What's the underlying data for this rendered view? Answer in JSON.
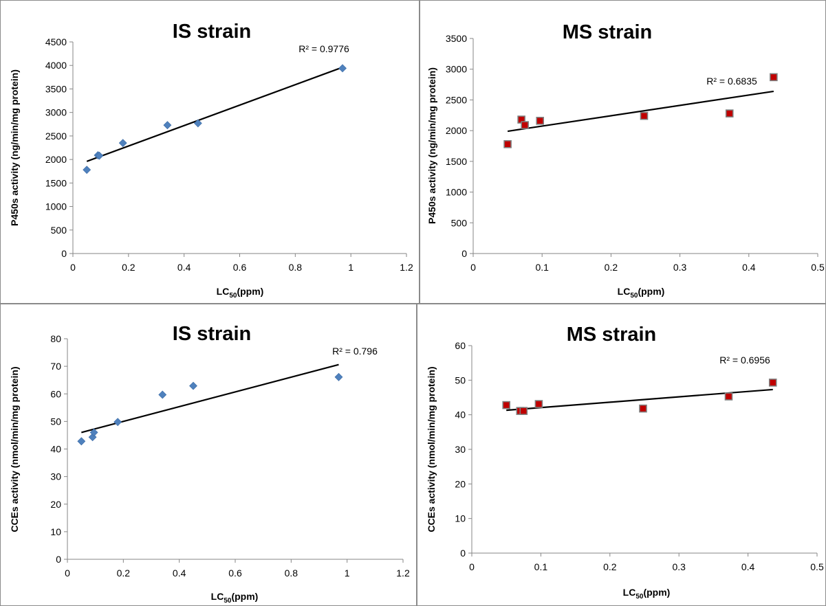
{
  "chart_data": [
    {
      "type": "scatter",
      "title": "IS strain",
      "xlabel": "LC",
      "xlabel_sub": "50",
      "xlabel_suffix": "(ppm)",
      "ylabel": "P450s activity (ng/min/mg protein)",
      "xlim": [
        0,
        1.2
      ],
      "ylim": [
        0,
        4500
      ],
      "xticks": [
        0,
        0.2,
        0.4,
        0.6,
        0.8,
        1,
        1.2
      ],
      "yticks": [
        0,
        500,
        1000,
        1500,
        2000,
        2500,
        3000,
        3500,
        4000,
        4500
      ],
      "grid": false,
      "legend": "none",
      "marker": "diamond",
      "marker_color": "#4f81bd",
      "points": [
        [
          0.05,
          1780
        ],
        [
          0.09,
          2090
        ],
        [
          0.095,
          2080
        ],
        [
          0.18,
          2350
        ],
        [
          0.34,
          2730
        ],
        [
          0.45,
          2770
        ],
        [
          0.97,
          3940
        ]
      ],
      "trendline": {
        "x": [
          0.05,
          0.97
        ],
        "y": [
          1960,
          3960
        ]
      },
      "r2_label": "R² = 0.9776"
    },
    {
      "type": "scatter",
      "title": "MS strain",
      "xlabel": "LC",
      "xlabel_sub": "50",
      "xlabel_suffix": "(ppm)",
      "ylabel": "P450s activity (ng/min/mg protein)",
      "xlim": [
        0,
        0.5
      ],
      "ylim": [
        0,
        3500
      ],
      "xticks": [
        0,
        0.1,
        0.2,
        0.3,
        0.4,
        0.5
      ],
      "yticks": [
        0,
        500,
        1000,
        1500,
        2000,
        2500,
        3000,
        3500
      ],
      "grid": false,
      "legend": "none",
      "marker": "square",
      "marker_color": "#c00000",
      "points": [
        [
          0.05,
          1780
        ],
        [
          0.07,
          2180
        ],
        [
          0.075,
          2090
        ],
        [
          0.097,
          2160
        ],
        [
          0.248,
          2240
        ],
        [
          0.372,
          2280
        ],
        [
          0.436,
          2870
        ]
      ],
      "trendline": {
        "x": [
          0.05,
          0.436
        ],
        "y": [
          1990,
          2640
        ]
      },
      "r2_label": "R² = 0.6835"
    },
    {
      "type": "scatter",
      "title": "IS strain",
      "xlabel": "LC",
      "xlabel_sub": "50",
      "xlabel_suffix": "(ppm)",
      "ylabel": "CCEs activity (nmol/min/mg protein)",
      "xlim": [
        0,
        1.2
      ],
      "ylim": [
        0,
        80
      ],
      "xticks": [
        0,
        0.2,
        0.4,
        0.6,
        0.8,
        1,
        1.2
      ],
      "yticks": [
        0,
        10,
        20,
        30,
        40,
        50,
        60,
        70,
        80
      ],
      "grid": false,
      "legend": "none",
      "marker": "diamond",
      "marker_color": "#4f81bd",
      "points": [
        [
          0.05,
          42.8
        ],
        [
          0.09,
          44.3
        ],
        [
          0.095,
          46.0
        ],
        [
          0.18,
          49.8
        ],
        [
          0.34,
          59.7
        ],
        [
          0.45,
          62.9
        ],
        [
          0.97,
          66.1
        ]
      ],
      "trendline": {
        "x": [
          0.05,
          0.97
        ],
        "y": [
          46.0,
          70.6
        ]
      },
      "r2_label": "R² = 0.796"
    },
    {
      "type": "scatter",
      "title": "MS strain",
      "xlabel": "LC",
      "xlabel_sub": "50",
      "xlabel_suffix": "(ppm)",
      "ylabel": "CCEs activity (nmol/min/mg protein)",
      "xlim": [
        0,
        0.5
      ],
      "ylim": [
        0,
        60
      ],
      "xticks": [
        0,
        0.1,
        0.2,
        0.3,
        0.4,
        0.5
      ],
      "yticks": [
        0,
        10,
        20,
        30,
        40,
        50,
        60
      ],
      "grid": false,
      "legend": "none",
      "marker": "square",
      "marker_color": "#c00000",
      "points": [
        [
          0.05,
          42.8
        ],
        [
          0.07,
          41.1
        ],
        [
          0.075,
          41.1
        ],
        [
          0.097,
          43.1
        ],
        [
          0.248,
          41.8
        ],
        [
          0.372,
          45.3
        ],
        [
          0.436,
          49.3
        ]
      ],
      "trendline": {
        "x": [
          0.05,
          0.436
        ],
        "y": [
          41.3,
          47.3
        ]
      },
      "r2_label": "R² = 0.6956"
    }
  ]
}
